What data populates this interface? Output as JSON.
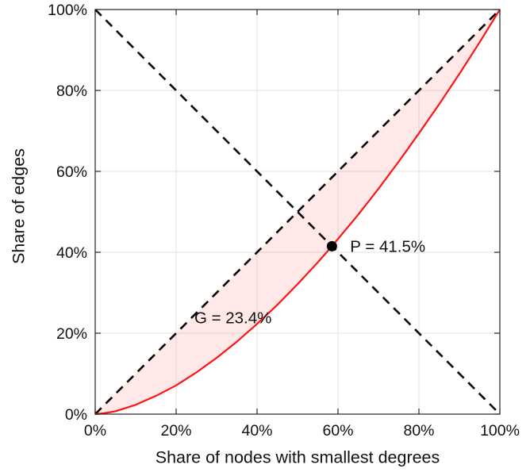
{
  "chart_data": {
    "type": "line",
    "title": "",
    "xlabel": "Share of nodes with smallest degrees",
    "ylabel": "Share of edges",
    "xlim": [
      0,
      100
    ],
    "ylim": [
      0,
      100
    ],
    "x_ticks": [
      0,
      20,
      40,
      60,
      80,
      100
    ],
    "y_ticks": [
      0,
      20,
      40,
      60,
      80,
      100
    ],
    "tick_suffix": "%",
    "grid": true,
    "colors": {
      "curve": "#ff1414",
      "dashed": "#000000",
      "fill": "rgba(255, 30, 30, 0.10)",
      "grid": "#e2e2e2",
      "axis": "#262626",
      "text": "#111111"
    },
    "series": [
      {
        "name": "equality-line",
        "style": "dashed",
        "color": "#000000",
        "x": [
          0,
          100
        ],
        "y": [
          0,
          100
        ]
      },
      {
        "name": "counter-diagonal-line",
        "style": "dashed",
        "color": "#000000",
        "x": [
          0,
          100
        ],
        "y": [
          100,
          0
        ]
      },
      {
        "name": "lorenz-curve",
        "style": "solid",
        "color": "#ff1414",
        "x": [
          0,
          2,
          5,
          10,
          15,
          20,
          25,
          30,
          35,
          40,
          45,
          50,
          55,
          58.5,
          60,
          65,
          70,
          75,
          80,
          85,
          90,
          95,
          100
        ],
        "y": [
          0,
          0.2,
          0.7,
          2.3,
          4.5,
          7.1,
          10.3,
          13.9,
          17.9,
          22.3,
          27,
          32.1,
          37.5,
          41.5,
          43.3,
          49.3,
          55.7,
          62.4,
          69.4,
          76.6,
          84.1,
          91.9,
          100
        ]
      }
    ],
    "fill_between": {
      "upper": "equality-line",
      "lower": "lorenz-curve"
    },
    "point": {
      "x": 58.5,
      "y": 41.5,
      "color": "#000000"
    },
    "annotations": [
      {
        "name": "p-annotation",
        "text": "P = 41.5%",
        "x": 63,
        "y": 41.5
      },
      {
        "name": "g-annotation",
        "text": "G = 23.4%",
        "x": 24.5,
        "y": 23.8
      }
    ]
  }
}
